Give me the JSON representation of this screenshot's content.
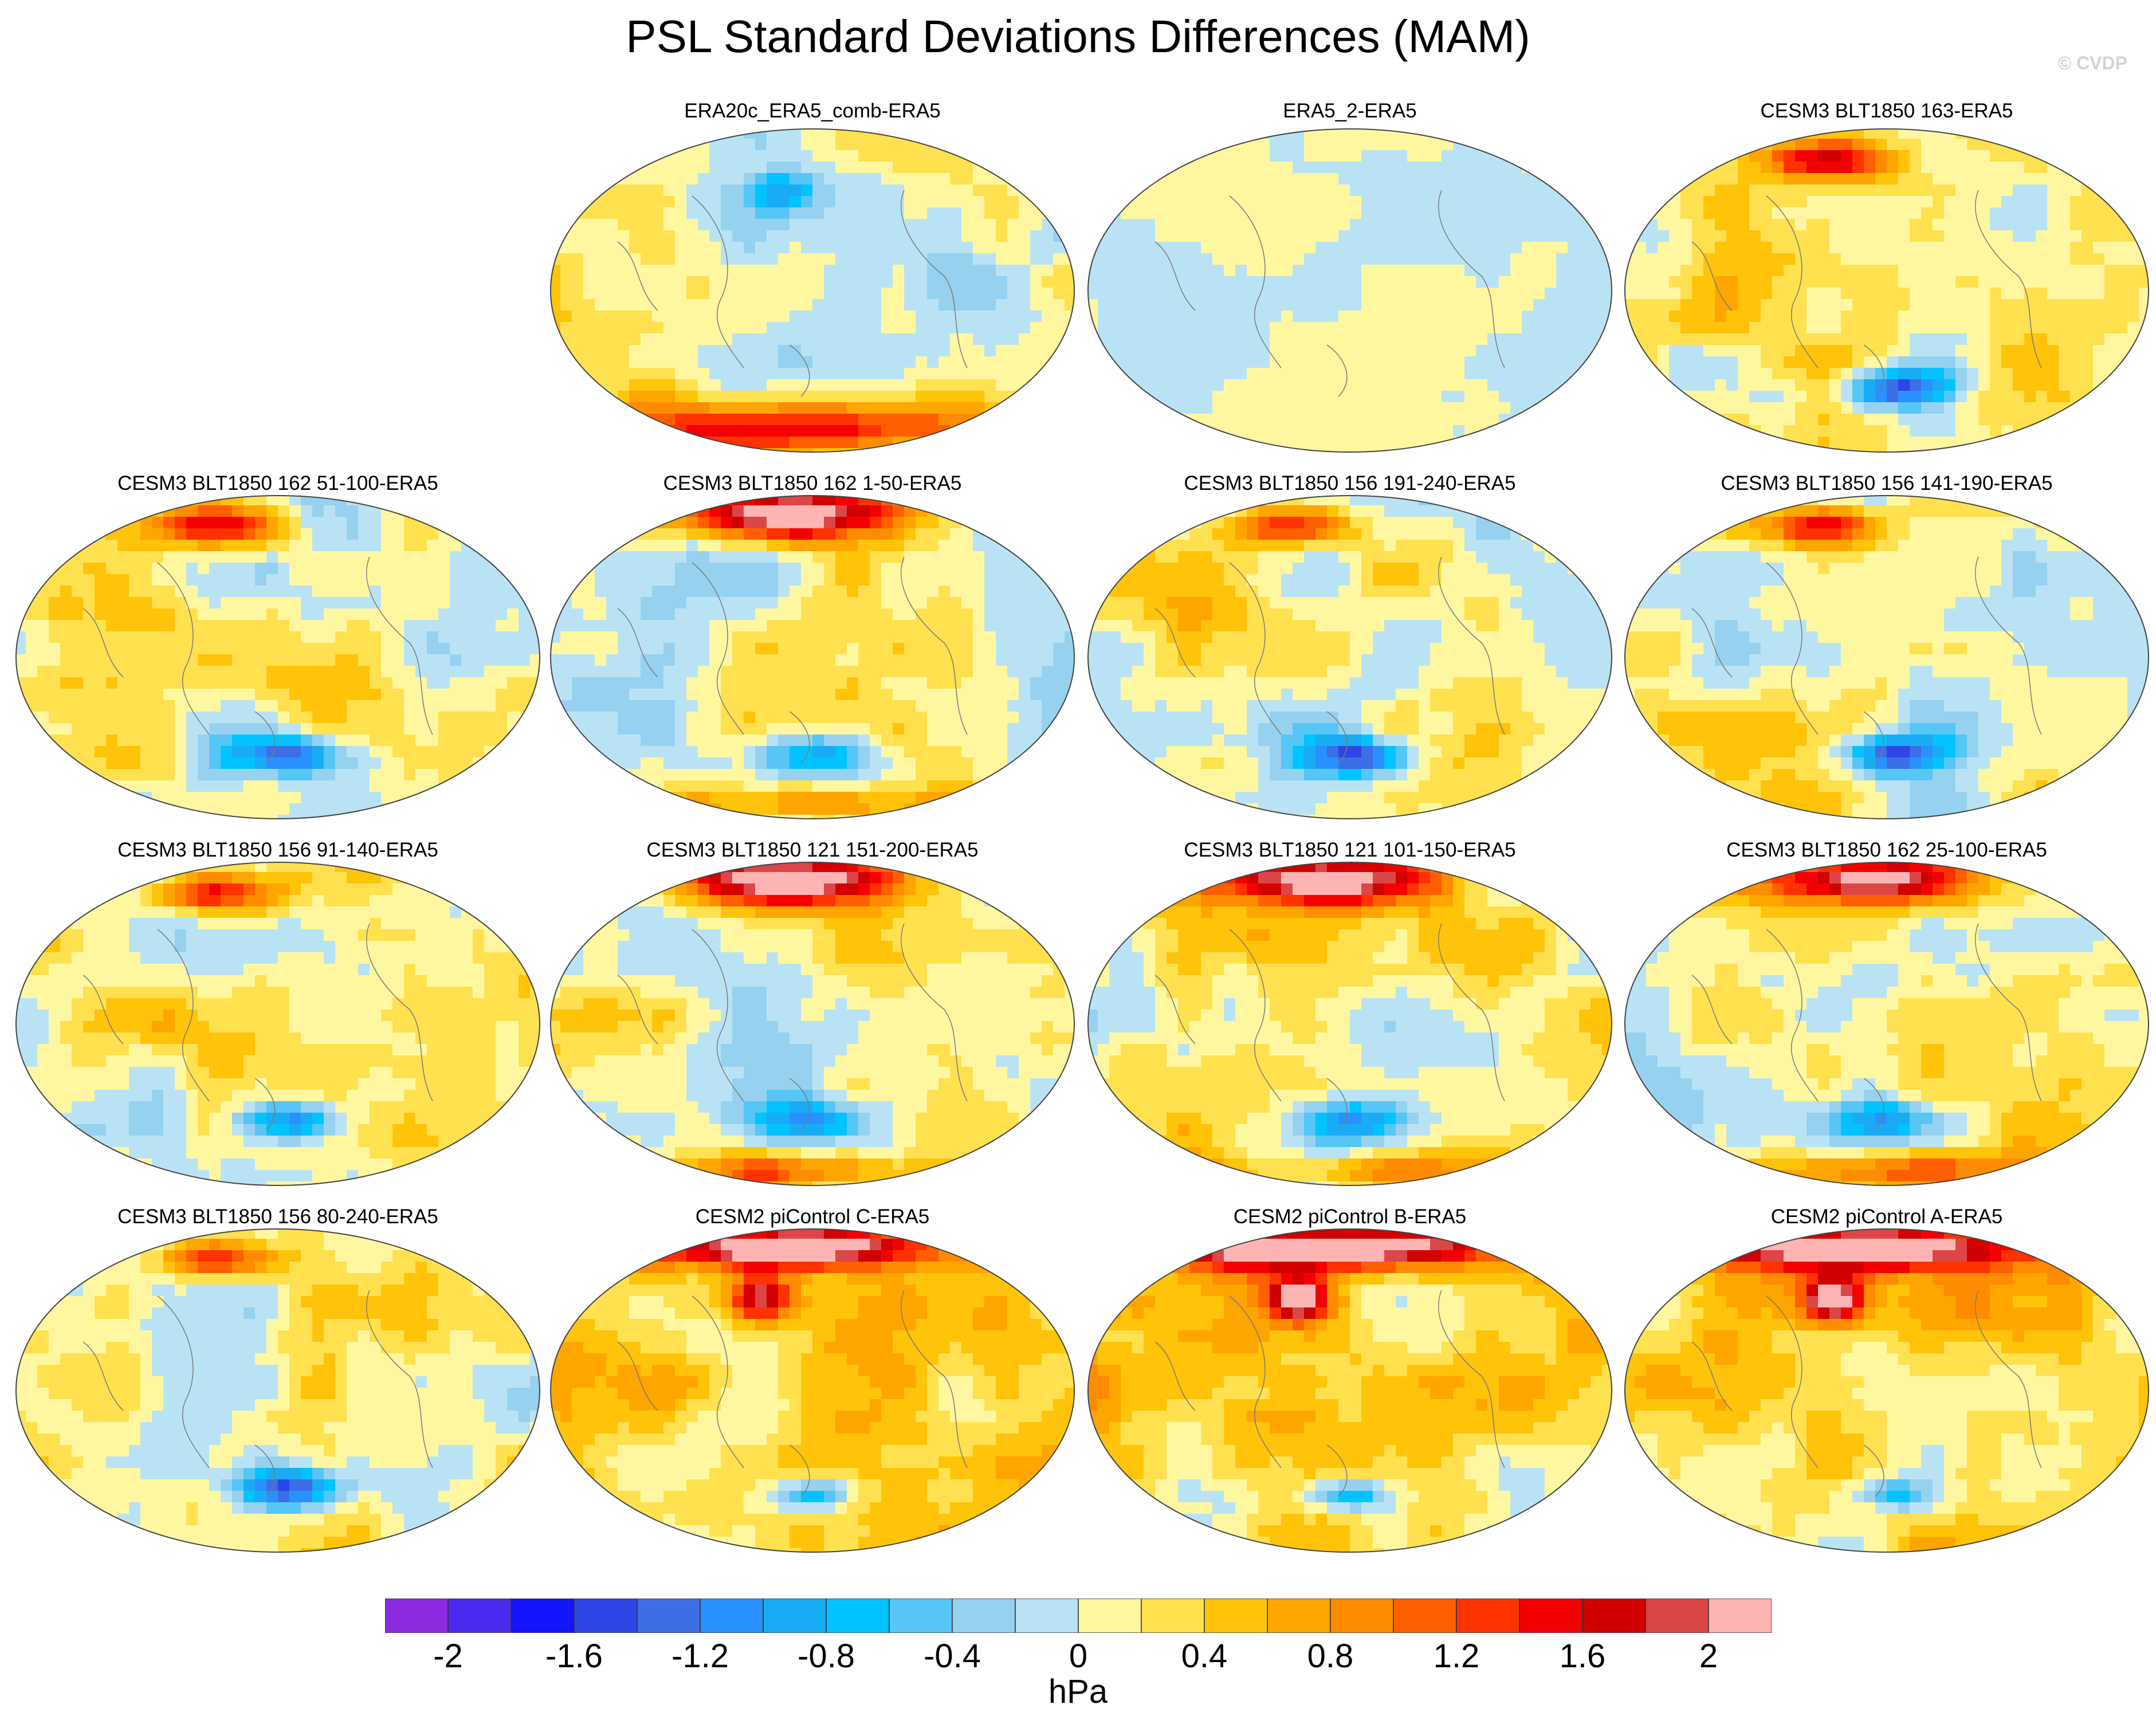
{
  "title": "PSL Standard Deviations Differences (MAM)",
  "credit": "© CVDP",
  "panels": [
    {
      "label": "ERA20c_ERA5_comb-ERA5",
      "style": 0
    },
    {
      "label": "ERA5_2-ERA5",
      "style": 1
    },
    {
      "label": "CESM3 BLT1850 163-ERA5",
      "style": 2
    },
    {
      "label": "CESM3 BLT1850 162 51-100-ERA5",
      "style": 2
    },
    {
      "label": "CESM3 BLT1850 162 1-50-ERA5",
      "style": 3
    },
    {
      "label": "CESM3 BLT1850 156 191-240-ERA5",
      "style": 2
    },
    {
      "label": "CESM3 BLT1850 156 141-190-ERA5",
      "style": 2
    },
    {
      "label": "CESM3 BLT1850 156 91-140-ERA5",
      "style": 2
    },
    {
      "label": "CESM3 BLT1850 121 151-200-ERA5",
      "style": 3
    },
    {
      "label": "CESM3 BLT1850 121 101-150-ERA5",
      "style": 3
    },
    {
      "label": "CESM3 BLT1850 162 25-100-ERA5",
      "style": 3
    },
    {
      "label": "CESM3 BLT1850 156 80-240-ERA5",
      "style": 2
    },
    {
      "label": "CESM2 piControl C-ERA5",
      "style": 4
    },
    {
      "label": "CESM2 piControl B-ERA5",
      "style": 4
    },
    {
      "label": "CESM2 piControl A-ERA5",
      "style": 4
    }
  ],
  "colorbar": {
    "colors": [
      "#8a2be2",
      "#4b2af0",
      "#1414ff",
      "#2d46e6",
      "#3c6ee6",
      "#2891ff",
      "#19acf5",
      "#00c3ff",
      "#55c6f5",
      "#96d2f0",
      "#b9e3f5",
      "#fff7a0",
      "#ffe150",
      "#ffc30a",
      "#ffa500",
      "#ff8c00",
      "#ff5f00",
      "#ff3200",
      "#f50000",
      "#d20000",
      "#dc4646",
      "#ffb4b4"
    ],
    "tick_labels": [
      "-2",
      "-1.6",
      "-1.2",
      "-0.8",
      "-0.4",
      "0",
      "0.4",
      "0.8",
      "1.2",
      "1.6",
      "2"
    ],
    "units": "hPa"
  }
}
